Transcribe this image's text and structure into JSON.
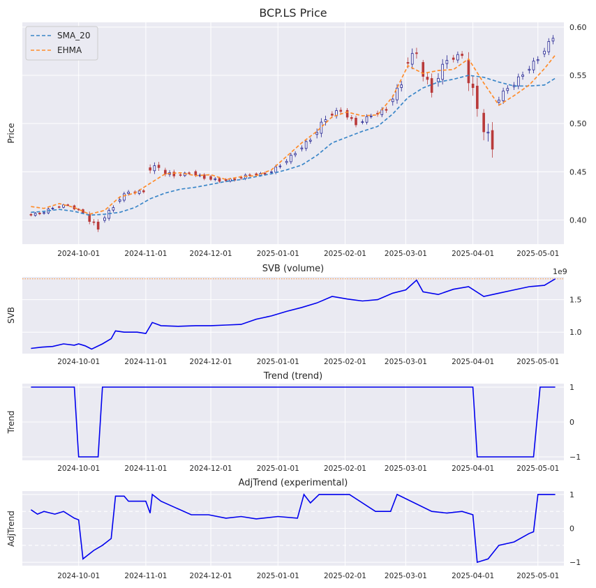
{
  "chart_data": [
    {
      "type": "candlestick",
      "title": "BCP.LS Price",
      "ylabel": "Price",
      "ylim": [
        0.375,
        0.605
      ],
      "yticks": [
        0.4,
        0.45,
        0.5,
        0.55,
        0.6
      ],
      "ytick_labels": [
        "0.40",
        "0.45",
        "0.50",
        "0.55",
        "0.60"
      ],
      "xticks": [
        "2024-10-01",
        "2024-11-01",
        "2024-12-01",
        "2025-01-01",
        "2025-02-01",
        "2025-03-01",
        "2025-04-01",
        "2025-05-01"
      ],
      "x_range": [
        "2024-09-05",
        "2025-05-13"
      ],
      "legend": {
        "position": "top-left",
        "entries": [
          "SMA_20",
          "EHMA"
        ]
      },
      "colors": {
        "up": "#1f1f8f",
        "down": "#b93a3a",
        "SMA_20": "#3a86c8",
        "EHMA": "#ff8c2a"
      },
      "series": [
        {
          "name": "SMA_20",
          "points": [
            [
              "2024-09-09",
              0.408
            ],
            [
              "2024-09-15",
              0.409
            ],
            [
              "2024-09-22",
              0.411
            ],
            [
              "2024-09-29",
              0.409
            ],
            [
              "2024-10-06",
              0.405
            ],
            [
              "2024-10-13",
              0.406
            ],
            [
              "2024-10-20",
              0.408
            ],
            [
              "2024-10-27",
              0.413
            ],
            [
              "2024-11-03",
              0.422
            ],
            [
              "2024-11-10",
              0.428
            ],
            [
              "2024-11-17",
              0.432
            ],
            [
              "2024-11-24",
              0.434
            ],
            [
              "2024-12-01",
              0.437
            ],
            [
              "2024-12-08",
              0.44
            ],
            [
              "2024-12-15",
              0.442
            ],
            [
              "2024-12-22",
              0.445
            ],
            [
              "2024-12-29",
              0.448
            ],
            [
              "2025-01-05",
              0.452
            ],
            [
              "2025-01-12",
              0.457
            ],
            [
              "2025-01-19",
              0.467
            ],
            [
              "2025-01-26",
              0.48
            ],
            [
              "2025-02-02",
              0.486
            ],
            [
              "2025-02-09",
              0.492
            ],
            [
              "2025-02-16",
              0.497
            ],
            [
              "2025-02-23",
              0.51
            ],
            [
              "2025-03-02",
              0.527
            ],
            [
              "2025-03-09",
              0.537
            ],
            [
              "2025-03-16",
              0.543
            ],
            [
              "2025-03-23",
              0.546
            ],
            [
              "2025-03-30",
              0.55
            ],
            [
              "2025-04-06",
              0.548
            ],
            [
              "2025-04-13",
              0.543
            ],
            [
              "2025-04-20",
              0.539
            ],
            [
              "2025-04-27",
              0.539
            ],
            [
              "2025-05-04",
              0.54
            ],
            [
              "2025-05-09",
              0.547
            ]
          ]
        },
        {
          "name": "EHMA",
          "points": [
            [
              "2024-09-09",
              0.414
            ],
            [
              "2024-09-15",
              0.412
            ],
            [
              "2024-09-22",
              0.417
            ],
            [
              "2024-09-29",
              0.413
            ],
            [
              "2024-10-06",
              0.406
            ],
            [
              "2024-10-13",
              0.41
            ],
            [
              "2024-10-20",
              0.424
            ],
            [
              "2024-10-27",
              0.428
            ],
            [
              "2024-11-03",
              0.438
            ],
            [
              "2024-11-10",
              0.448
            ],
            [
              "2024-11-17",
              0.449
            ],
            [
              "2024-11-24",
              0.446
            ],
            [
              "2024-12-01",
              0.447
            ],
            [
              "2024-12-08",
              0.442
            ],
            [
              "2024-12-15",
              0.445
            ],
            [
              "2024-12-22",
              0.446
            ],
            [
              "2024-12-29",
              0.452
            ],
            [
              "2025-01-05",
              0.466
            ],
            [
              "2025-01-12",
              0.48
            ],
            [
              "2025-01-19",
              0.492
            ],
            [
              "2025-01-26",
              0.507
            ],
            [
              "2025-02-02",
              0.512
            ],
            [
              "2025-02-09",
              0.508
            ],
            [
              "2025-02-16",
              0.509
            ],
            [
              "2025-02-23",
              0.528
            ],
            [
              "2025-03-02",
              0.56
            ],
            [
              "2025-03-09",
              0.552
            ],
            [
              "2025-03-16",
              0.555
            ],
            [
              "2025-03-23",
              0.556
            ],
            [
              "2025-03-30",
              0.567
            ],
            [
              "2025-04-06",
              0.542
            ],
            [
              "2025-04-13",
              0.519
            ],
            [
              "2025-04-20",
              0.529
            ],
            [
              "2025-04-27",
              0.54
            ],
            [
              "2025-05-04",
              0.557
            ],
            [
              "2025-05-09",
              0.571
            ]
          ]
        }
      ],
      "ohlc_weekly": [
        [
          "2024-09-09",
          0.405,
          0.41,
          0.399,
          0.407
        ],
        [
          "2024-09-15",
          0.406,
          0.416,
          0.404,
          0.413
        ],
        [
          "2024-09-22",
          0.413,
          0.42,
          0.41,
          0.416
        ],
        [
          "2024-09-29",
          0.414,
          0.416,
          0.406,
          0.408
        ],
        [
          "2024-10-06",
          0.404,
          0.41,
          0.386,
          0.392
        ],
        [
          "2024-10-13",
          0.398,
          0.416,
          0.396,
          0.414
        ],
        [
          "2024-10-20",
          0.418,
          0.435,
          0.417,
          0.43
        ],
        [
          "2024-10-27",
          0.428,
          0.434,
          0.42,
          0.43
        ],
        [
          "2024-11-03",
          0.452,
          0.468,
          0.44,
          0.456
        ],
        [
          "2024-11-10",
          0.45,
          0.459,
          0.438,
          0.447
        ],
        [
          "2024-11-17",
          0.446,
          0.452,
          0.44,
          0.449
        ],
        [
          "2024-11-24",
          0.449,
          0.454,
          0.439,
          0.444
        ],
        [
          "2024-12-01",
          0.444,
          0.45,
          0.436,
          0.441
        ],
        [
          "2024-12-08",
          0.441,
          0.447,
          0.435,
          0.442
        ],
        [
          "2024-12-15",
          0.443,
          0.455,
          0.44,
          0.447
        ],
        [
          "2024-12-22",
          0.447,
          0.452,
          0.44,
          0.448
        ],
        [
          "2024-12-29",
          0.448,
          0.462,
          0.444,
          0.457
        ],
        [
          "2025-01-05",
          0.458,
          0.476,
          0.456,
          0.47
        ],
        [
          "2025-01-12",
          0.472,
          0.49,
          0.468,
          0.484
        ],
        [
          "2025-01-19",
          0.486,
          0.514,
          0.48,
          0.506
        ],
        [
          "2025-01-26",
          0.508,
          0.522,
          0.498,
          0.514
        ],
        [
          "2025-02-02",
          0.512,
          0.516,
          0.495,
          0.5
        ],
        [
          "2025-02-09",
          0.5,
          0.514,
          0.494,
          0.509
        ],
        [
          "2025-02-16",
          0.509,
          0.522,
          0.5,
          0.515
        ],
        [
          "2025-02-23",
          0.52,
          0.55,
          0.516,
          0.542
        ],
        [
          "2025-03-02",
          0.56,
          0.588,
          0.545,
          0.575
        ],
        [
          "2025-03-09",
          0.56,
          0.566,
          0.523,
          0.535
        ],
        [
          "2025-03-16",
          0.54,
          0.58,
          0.536,
          0.568
        ],
        [
          "2025-03-23",
          0.566,
          0.582,
          0.556,
          0.572
        ],
        [
          "2025-03-30",
          0.56,
          0.575,
          0.505,
          0.52
        ],
        [
          "2025-04-06",
          0.505,
          0.515,
          0.442,
          0.478
        ],
        [
          "2025-04-13",
          0.52,
          0.542,
          0.514,
          0.538
        ],
        [
          "2025-04-20",
          0.536,
          0.56,
          0.532,
          0.552
        ],
        [
          "2025-04-27",
          0.553,
          0.577,
          0.548,
          0.568
        ],
        [
          "2025-05-04",
          0.57,
          0.594,
          0.566,
          0.59
        ]
      ]
    },
    {
      "type": "line",
      "title": "SVB (volume)",
      "ylabel": "SVB",
      "offset_label": "1e9",
      "ylim": [
        0.67,
        1.85
      ],
      "yticks": [
        1.0,
        1.5
      ],
      "ytick_labels": [
        "1.0",
        "1.5"
      ],
      "reference_line": 1.82,
      "colors": {
        "line": "#0000ee",
        "reference": "#ff8c2a"
      },
      "points": [
        [
          "2024-09-09",
          0.75
        ],
        [
          "2024-09-14",
          0.77
        ],
        [
          "2024-09-19",
          0.78
        ],
        [
          "2024-09-24",
          0.82
        ],
        [
          "2024-09-29",
          0.8
        ],
        [
          "2024-10-01",
          0.82
        ],
        [
          "2024-10-04",
          0.79
        ],
        [
          "2024-10-07",
          0.74
        ],
        [
          "2024-10-12",
          0.82
        ],
        [
          "2024-10-16",
          0.9
        ],
        [
          "2024-10-18",
          1.02
        ],
        [
          "2024-10-22",
          1.0
        ],
        [
          "2024-10-28",
          1.0
        ],
        [
          "2024-11-01",
          0.98
        ],
        [
          "2024-11-04",
          1.15
        ],
        [
          "2024-11-08",
          1.1
        ],
        [
          "2024-11-16",
          1.09
        ],
        [
          "2024-11-24",
          1.1
        ],
        [
          "2024-12-01",
          1.1
        ],
        [
          "2024-12-08",
          1.11
        ],
        [
          "2024-12-15",
          1.12
        ],
        [
          "2024-12-22",
          1.2
        ],
        [
          "2024-12-29",
          1.25
        ],
        [
          "2025-01-05",
          1.32
        ],
        [
          "2025-01-12",
          1.38
        ],
        [
          "2025-01-19",
          1.45
        ],
        [
          "2025-01-26",
          1.55
        ],
        [
          "2025-02-02",
          1.51
        ],
        [
          "2025-02-09",
          1.48
        ],
        [
          "2025-02-16",
          1.5
        ],
        [
          "2025-02-23",
          1.6
        ],
        [
          "2025-03-01",
          1.65
        ],
        [
          "2025-03-06",
          1.8
        ],
        [
          "2025-03-09",
          1.62
        ],
        [
          "2025-03-16",
          1.58
        ],
        [
          "2025-03-23",
          1.66
        ],
        [
          "2025-03-30",
          1.7
        ],
        [
          "2025-04-06",
          1.55
        ],
        [
          "2025-04-13",
          1.6
        ],
        [
          "2025-04-20",
          1.65
        ],
        [
          "2025-04-27",
          1.7
        ],
        [
          "2025-05-04",
          1.72
        ],
        [
          "2025-05-09",
          1.82
        ]
      ]
    },
    {
      "type": "line",
      "title": "Trend (trend)",
      "ylabel": "Trend",
      "ylim": [
        -1.1,
        1.1
      ],
      "yticks": [
        -1,
        0,
        1
      ],
      "ytick_labels": [
        "−1",
        "0",
        "1"
      ],
      "colors": {
        "line": "#0000ee"
      },
      "points": [
        [
          "2024-09-09",
          1
        ],
        [
          "2024-09-29",
          1
        ],
        [
          "2024-10-01",
          -1
        ],
        [
          "2024-10-10",
          -1
        ],
        [
          "2024-10-12",
          1
        ],
        [
          "2025-04-01",
          1
        ],
        [
          "2025-04-03",
          -1
        ],
        [
          "2025-04-29",
          -1
        ],
        [
          "2025-05-02",
          1
        ],
        [
          "2025-05-09",
          1
        ]
      ]
    },
    {
      "type": "line",
      "title": "AdjTrend (experimental)",
      "ylabel": "AdjTrend",
      "ylim": [
        -1.1,
        1.1
      ],
      "yticks": [
        -1,
        0,
        1
      ],
      "ytick_labels": [
        "−1",
        "0",
        "1"
      ],
      "reference_lines": [
        0.5,
        -0.5
      ],
      "colors": {
        "line": "#0000ee",
        "reference": "#ffffff"
      },
      "points": [
        [
          "2024-09-09",
          0.55
        ],
        [
          "2024-09-12",
          0.42
        ],
        [
          "2024-09-15",
          0.5
        ],
        [
          "2024-09-20",
          0.42
        ],
        [
          "2024-09-24",
          0.5
        ],
        [
          "2024-09-29",
          0.3
        ],
        [
          "2024-10-01",
          0.25
        ],
        [
          "2024-10-03",
          -0.9
        ],
        [
          "2024-10-08",
          -0.65
        ],
        [
          "2024-10-12",
          -0.5
        ],
        [
          "2024-10-16",
          -0.3
        ],
        [
          "2024-10-18",
          0.95
        ],
        [
          "2024-10-22",
          0.95
        ],
        [
          "2024-10-24",
          0.8
        ],
        [
          "2024-11-01",
          0.8
        ],
        [
          "2024-11-03",
          0.45
        ],
        [
          "2024-11-04",
          1.0
        ],
        [
          "2024-11-08",
          0.8
        ],
        [
          "2024-11-15",
          0.6
        ],
        [
          "2024-11-22",
          0.4
        ],
        [
          "2024-11-30",
          0.4
        ],
        [
          "2024-12-08",
          0.3
        ],
        [
          "2024-12-15",
          0.35
        ],
        [
          "2024-12-22",
          0.28
        ],
        [
          "2025-01-01",
          0.35
        ],
        [
          "2025-01-10",
          0.3
        ],
        [
          "2025-01-13",
          1.0
        ],
        [
          "2025-01-16",
          0.75
        ],
        [
          "2025-01-20",
          1.0
        ],
        [
          "2025-02-03",
          1.0
        ],
        [
          "2025-02-15",
          0.5
        ],
        [
          "2025-02-22",
          0.5
        ],
        [
          "2025-02-25",
          1.0
        ],
        [
          "2025-03-13",
          0.5
        ],
        [
          "2025-03-20",
          0.45
        ],
        [
          "2025-03-27",
          0.5
        ],
        [
          "2025-04-01",
          0.4
        ],
        [
          "2025-04-03",
          -1.0
        ],
        [
          "2025-04-08",
          -0.9
        ],
        [
          "2025-04-13",
          -0.5
        ],
        [
          "2025-04-20",
          -0.4
        ],
        [
          "2025-04-27",
          -0.15
        ],
        [
          "2025-04-29",
          -0.1
        ],
        [
          "2025-05-01",
          1.0
        ],
        [
          "2025-05-09",
          1.0
        ]
      ]
    }
  ]
}
